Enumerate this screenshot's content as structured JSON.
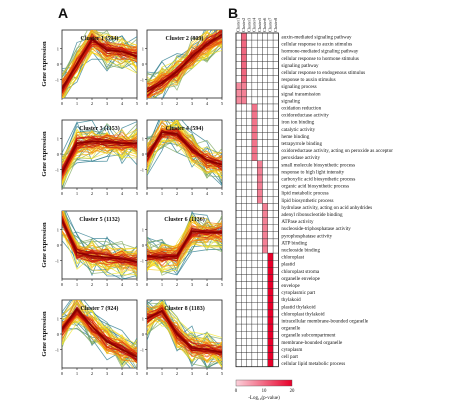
{
  "panels": {
    "a": "A",
    "b": "B"
  },
  "chart_data": [
    {
      "type": "line",
      "panel": "A",
      "ylabel": "Gene expression",
      "x_ticks": [
        "0",
        "1",
        "2",
        "3",
        "4",
        "5"
      ],
      "y_ticks": [
        "1",
        "0",
        "-1"
      ],
      "clusters": [
        {
          "label": "Cluster 1 (594)",
          "profile": [
            -1.6,
            0.0,
            1.6,
            0.9,
            0.8,
            0.5
          ]
        },
        {
          "label": "Cluster 2 (809)",
          "profile": [
            -1.8,
            -1.2,
            -0.5,
            0.5,
            1.3,
            1.9
          ]
        },
        {
          "label": "Cluster 3 (1153)",
          "profile": [
            -1.2,
            0.7,
            0.8,
            0.8,
            0.7,
            0.7
          ]
        },
        {
          "label": "Cluster 4 (594)",
          "profile": [
            -0.2,
            1.4,
            1.3,
            0.3,
            -0.4,
            -0.7
          ]
        },
        {
          "label": "Cluster 5 (1132)",
          "profile": [
            1.6,
            -0.5,
            -0.7,
            -0.8,
            -0.9,
            -1.1
          ]
        },
        {
          "label": "Cluster 6 (1136)",
          "profile": [
            -0.7,
            -0.8,
            -0.7,
            0.9,
            0.8,
            0.8
          ]
        },
        {
          "label": "Cluster 7 (924)",
          "profile": [
            0.3,
            1.6,
            0.5,
            -0.5,
            -1.0,
            -1.5
          ]
        },
        {
          "label": "Cluster 8 (1183)",
          "profile": [
            1.0,
            1.5,
            0.0,
            -0.9,
            -1.0,
            -1.2
          ]
        }
      ]
    },
    {
      "type": "heatmap",
      "panel": "B",
      "columns": [
        "Cluster1",
        "Cluster2",
        "Cluster3",
        "Cluster4",
        "Cluster5",
        "Cluster6",
        "Cluster7",
        "Cluster8"
      ],
      "rows": [
        "auxin-mediated signaling pathway",
        "cellular response to auxin stimulus",
        "hormone-mediated signaling pathway",
        "cellular response to hormone stimulus",
        "signaling pathway",
        "cellular response to endogenous stimulus",
        "response to auxin stimulus",
        "signaling process",
        "signal transmission",
        "signaling",
        "oxidation reduction",
        "oxidoreductase activity",
        "iron ion binding",
        "catalytic activity",
        "heme binding",
        "tetrapyrrole binding",
        "oxidoreductase activity, acting on peroxide as acceptor",
        "peroxidase activity",
        "small molecule biosynthetic process",
        "response to high light intensity",
        "carboxylic acid biosynthetic process",
        "organic acid biosynthetic process",
        "lipid metabolic process",
        "lipid biosynthetic process",
        "hydrolase activity, acting on acid anhydrides",
        "adenyl ribonucleotide binding",
        "ATPase activity",
        "nucleoside-triphosphatase activity",
        "pyrophosphatase activity",
        "ATP binding",
        "nucleoside binding",
        "chloroplast",
        "plastid",
        "chloroplast stroma",
        "organelle envelope",
        "envelope",
        "cytoplasmic part",
        "thylakoid",
        "plastid thylakoid",
        "chloroplast thylakoid",
        "intracellular membrane-bounded organelle",
        "organelle",
        "organelle subcompartment",
        "membrane-bounded organelle",
        "cytoplasm",
        "cell part",
        "cellular lipid metabolic process"
      ],
      "cells": [
        [
          1,
          0,
          12
        ],
        [
          1,
          1,
          12
        ],
        [
          1,
          2,
          12
        ],
        [
          1,
          3,
          12
        ],
        [
          1,
          4,
          12
        ],
        [
          1,
          5,
          12
        ],
        [
          1,
          6,
          12
        ],
        [
          1,
          7,
          10
        ],
        [
          1,
          8,
          10
        ],
        [
          1,
          9,
          10
        ],
        [
          0,
          7,
          9
        ],
        [
          0,
          8,
          9
        ],
        [
          0,
          9,
          9
        ],
        [
          3,
          10,
          11
        ],
        [
          3,
          11,
          11
        ],
        [
          3,
          12,
          11
        ],
        [
          3,
          13,
          11
        ],
        [
          3,
          14,
          11
        ],
        [
          3,
          15,
          11
        ],
        [
          3,
          16,
          11
        ],
        [
          3,
          17,
          11
        ],
        [
          4,
          18,
          10
        ],
        [
          4,
          19,
          10
        ],
        [
          4,
          20,
          10
        ],
        [
          4,
          21,
          10
        ],
        [
          4,
          22,
          10
        ],
        [
          4,
          23,
          10
        ],
        [
          5,
          24,
          10
        ],
        [
          5,
          25,
          10
        ],
        [
          5,
          26,
          10
        ],
        [
          5,
          27,
          10
        ],
        [
          5,
          28,
          10
        ],
        [
          5,
          29,
          10
        ],
        [
          5,
          30,
          10
        ],
        [
          6,
          31,
          20
        ],
        [
          6,
          32,
          20
        ],
        [
          6,
          33,
          20
        ],
        [
          6,
          34,
          20
        ],
        [
          6,
          35,
          20
        ],
        [
          6,
          36,
          20
        ],
        [
          6,
          37,
          20
        ],
        [
          6,
          38,
          20
        ],
        [
          6,
          39,
          20
        ],
        [
          6,
          40,
          20
        ],
        [
          6,
          41,
          20
        ],
        [
          6,
          42,
          20
        ],
        [
          6,
          43,
          20
        ],
        [
          6,
          44,
          20
        ],
        [
          6,
          45,
          20
        ],
        [
          6,
          46,
          20
        ]
      ],
      "colorbar": {
        "label": "-Log₁₀(p-value)",
        "min": 0,
        "max": 20,
        "ticks": [
          "0",
          "10",
          "20"
        ],
        "low_color": "#ffffff",
        "high_color": "#e8002a"
      }
    }
  ]
}
